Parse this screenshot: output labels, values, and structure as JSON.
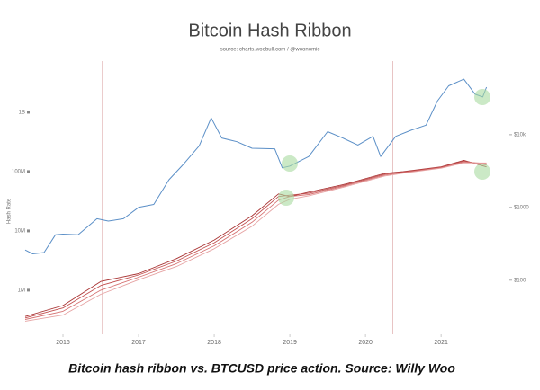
{
  "chart_data": {
    "type": "line",
    "title": "Bitcoin Hash Ribbon",
    "subtitle": "source: charts.woobull.com / @woonomic",
    "y_label": "Hash Rate",
    "caption": "Bitcoin hash ribbon vs. BTCUSD price action. Source: Willy Woo",
    "xlim": [
      2015.5,
      2021.7
    ],
    "xticks": [
      2016,
      2017,
      2018,
      2019,
      2020,
      2021
    ],
    "ylim": [
      230000,
      4800000000
    ],
    "ylog": true,
    "yticks": [
      {
        "value": 1000000,
        "label": "1M"
      },
      {
        "value": 10000000,
        "label": "10M"
      },
      {
        "value": 100000000,
        "label": "100M"
      },
      {
        "value": 1000000000,
        "label": "1B"
      }
    ],
    "y2lim": [
      22,
      73000
    ],
    "y2log": true,
    "y2ticks": [
      {
        "value": 100,
        "label": "$100"
      },
      {
        "value": 1000,
        "label": "$1000"
      },
      {
        "value": 10000,
        "label": "$10k"
      }
    ],
    "vlines": [
      2016.52,
      2020.36
    ],
    "series": [
      {
        "color": "#5b8fc7",
        "axis": "y2",
        "x": [
          2015.5,
          2015.6,
          2015.75,
          2015.9,
          2016.0,
          2016.2,
          2016.45,
          2016.6,
          2016.8,
          2017.0,
          2017.2,
          2017.4,
          2017.6,
          2017.8,
          2017.96,
          2018.1,
          2018.3,
          2018.5,
          2018.8,
          2018.9,
          2019.0,
          2019.25,
          2019.5,
          2019.7,
          2019.9,
          2020.1,
          2020.2,
          2020.4,
          2020.6,
          2020.8,
          2020.95,
          2021.1,
          2021.3,
          2021.45,
          2021.55,
          2021.6
        ],
        "values": [
          260,
          230,
          240,
          420,
          430,
          420,
          700,
          650,
          700,
          1000,
          1100,
          2400,
          4000,
          7000,
          17000,
          9000,
          8000,
          6500,
          6400,
          3500,
          3700,
          5000,
          11000,
          9000,
          7200,
          9500,
          5000,
          9500,
          11500,
          13500,
          29000,
          47000,
          58000,
          36000,
          33000,
          45000
        ]
      },
      {
        "color": "#a83232",
        "x": [
          2015.5,
          2016,
          2016.5,
          2017,
          2017.5,
          2018,
          2018.5,
          2018.85,
          2019,
          2019.25,
          2019.75,
          2020.25,
          2020.5,
          2021,
          2021.3,
          2021.6
        ],
        "values": [
          360000,
          550000,
          1400000,
          1900000,
          3400000,
          7000000,
          18000000,
          42000000,
          38000000,
          45000000,
          62000000,
          93000000,
          100000000,
          120000000,
          155000000,
          120000000
        ]
      },
      {
        "color": "#c25050",
        "x": [
          2015.5,
          2016,
          2016.5,
          2017,
          2017.5,
          2018,
          2018.5,
          2018.85,
          2019,
          2019.25,
          2019.75,
          2020.25,
          2020.5,
          2021,
          2021.3,
          2021.6
        ],
        "values": [
          340000,
          500000,
          1200000,
          1800000,
          3100000,
          6300000,
          16000000,
          38000000,
          40000000,
          43000000,
          60000000,
          90000000,
          98000000,
          118000000,
          150000000,
          130000000
        ]
      },
      {
        "color": "#d67373",
        "x": [
          2015.5,
          2016,
          2016.5,
          2017,
          2017.5,
          2018,
          2018.5,
          2018.85,
          2019,
          2019.25,
          2019.75,
          2020.25,
          2020.5,
          2021,
          2021.3,
          2021.6
        ],
        "values": [
          320000,
          440000,
          1000000,
          1650000,
          2800000,
          5600000,
          14000000,
          33000000,
          38000000,
          41000000,
          58000000,
          87000000,
          96000000,
          116000000,
          145000000,
          137000000
        ]
      },
      {
        "color": "#e6a3a3",
        "x": [
          2015.5,
          2016,
          2016.5,
          2017,
          2017.5,
          2018,
          2018.5,
          2018.85,
          2019,
          2019.25,
          2019.75,
          2020.25,
          2020.5,
          2021,
          2021.3,
          2021.6
        ],
        "values": [
          300000,
          380000,
          850000,
          1500000,
          2500000,
          5000000,
          12000000,
          28000000,
          34000000,
          39000000,
          56000000,
          84000000,
          94000000,
          114000000,
          140000000,
          140000000
        ]
      }
    ]
  }
}
